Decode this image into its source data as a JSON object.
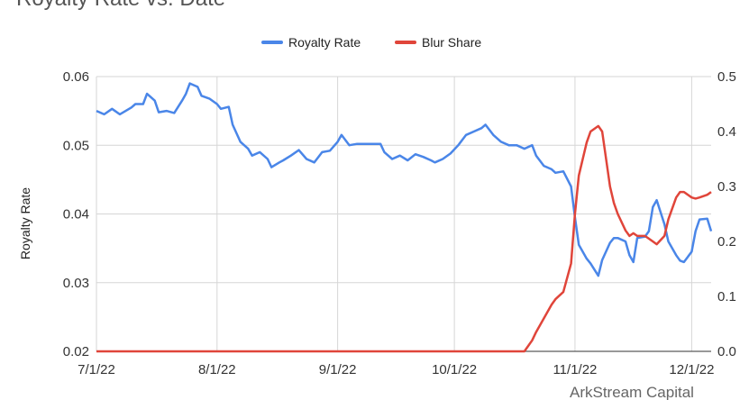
{
  "chart_data": {
    "type": "line",
    "title": "Royalty Rate vs. Date",
    "y_label": "Royalty Rate",
    "watermark": "ArkStream Capital",
    "x": [
      "7/1/22",
      "7/3/22",
      "7/5/22",
      "7/7/22",
      "7/10/22",
      "7/11/22",
      "7/13/22",
      "7/14/22",
      "7/16/22",
      "7/17/22",
      "7/19/22",
      "7/21/22",
      "7/23/22",
      "7/24/22",
      "7/25/22",
      "7/27/22",
      "7/28/22",
      "7/30/22",
      "8/1/22",
      "8/2/22",
      "8/4/22",
      "8/5/22",
      "8/7/22",
      "8/9/22",
      "8/10/22",
      "8/12/22",
      "8/14/22",
      "8/15/22",
      "8/17/22",
      "8/18/22",
      "8/20/22",
      "8/22/22",
      "8/24/22",
      "8/26/22",
      "8/28/22",
      "8/30/22",
      "9/1/22",
      "9/2/22",
      "9/4/22",
      "9/6/22",
      "9/8/22",
      "9/10/22",
      "9/12/22",
      "9/13/22",
      "9/15/22",
      "9/17/22",
      "9/19/22",
      "9/21/22",
      "9/23/22",
      "9/25/22",
      "9/26/22",
      "9/28/22",
      "9/30/22",
      "10/2/22",
      "10/4/22",
      "10/6/22",
      "10/8/22",
      "10/9/22",
      "10/11/22",
      "10/13/22",
      "10/15/22",
      "10/17/22",
      "10/19/22",
      "10/21/22",
      "10/22/22",
      "10/24/22",
      "10/26/22",
      "10/27/22",
      "10/29/22",
      "10/31/22",
      "11/1/22",
      "11/2/22",
      "11/4/22",
      "11/5/22",
      "11/7/22",
      "11/8/22",
      "11/10/22",
      "11/11/22",
      "11/12/22",
      "11/14/22",
      "11/15/22",
      "11/16/22",
      "11/17/22",
      "11/19/22",
      "11/20/22",
      "11/21/22",
      "11/22/22",
      "11/24/22",
      "11/25/22",
      "11/27/22",
      "11/28/22",
      "11/29/22",
      "12/1/22",
      "12/2/22",
      "12/3/22",
      "12/5/22",
      "12/6/22"
    ],
    "series": [
      {
        "name": "Royalty Rate",
        "color": "#4a86e8",
        "values": [
          0.055,
          0.0545,
          0.0553,
          0.0545,
          0.0555,
          0.056,
          0.056,
          0.0575,
          0.0565,
          0.0548,
          0.055,
          0.0547,
          0.0565,
          0.0575,
          0.059,
          0.0585,
          0.0572,
          0.0568,
          0.056,
          0.0553,
          0.0556,
          0.053,
          0.0505,
          0.0495,
          0.0485,
          0.049,
          0.048,
          0.0468,
          0.0475,
          0.0478,
          0.0485,
          0.0493,
          0.048,
          0.0475,
          0.049,
          0.0492,
          0.0505,
          0.0515,
          0.05,
          0.0502,
          0.0502,
          0.0502,
          0.0502,
          0.049,
          0.048,
          0.0485,
          0.0478,
          0.0487,
          0.0483,
          0.0478,
          0.0475,
          0.048,
          0.0488,
          0.05,
          0.0515,
          0.052,
          0.0525,
          0.053,
          0.0515,
          0.0505,
          0.05,
          0.05,
          0.0495,
          0.05,
          0.0485,
          0.047,
          0.0465,
          0.046,
          0.0462,
          0.044,
          0.0395,
          0.0355,
          0.0335,
          0.0328,
          0.031,
          0.0333,
          0.0358,
          0.0365,
          0.0365,
          0.036,
          0.034,
          0.033,
          0.0365,
          0.0367,
          0.0375,
          0.041,
          0.042,
          0.0385,
          0.036,
          0.034,
          0.0332,
          0.033,
          0.0345,
          0.0375,
          0.0392,
          0.0393,
          0.0375
        ]
      },
      {
        "name": "Blur Share",
        "color": "#e0453a",
        "axis": "y2",
        "values": [
          0,
          0,
          0,
          0,
          0,
          0,
          0,
          0,
          0,
          0,
          0,
          0,
          0,
          0,
          0,
          0,
          0,
          0,
          0,
          0,
          0,
          0,
          0,
          0,
          0,
          0,
          0,
          0,
          0,
          0,
          0,
          0,
          0,
          0,
          0,
          0,
          0,
          0,
          0,
          0,
          0,
          0,
          0,
          0,
          0,
          0,
          0,
          0,
          0,
          0,
          0,
          0,
          0,
          0,
          0,
          0,
          0,
          0,
          0,
          0,
          0,
          0,
          0,
          0.02,
          0.035,
          0.06,
          0.085,
          0.095,
          0.108,
          0.16,
          0.25,
          0.32,
          0.38,
          0.4,
          0.41,
          0.4,
          0.3,
          0.27,
          0.25,
          0.22,
          0.21,
          0.215,
          0.21,
          0.21,
          0.205,
          0.2,
          0.195,
          0.21,
          0.24,
          0.28,
          0.29,
          0.29,
          0.28,
          0.278,
          0.28,
          0.285,
          0.29
        ]
      }
    ],
    "xlim": [
      "7/1/22",
      "12/6/22"
    ],
    "xticks": [
      "7/1/22",
      "8/1/22",
      "9/1/22",
      "10/1/22",
      "11/1/22",
      "12/1/22"
    ],
    "ylim": [
      0.02,
      0.06
    ],
    "yticks": [
      0.02,
      0.03,
      0.04,
      0.05,
      0.06
    ],
    "y2lim": [
      0,
      0.5
    ],
    "y2ticks": [
      {
        "value": 0,
        "label": "0.0"
      },
      0.1,
      0.2,
      0.3,
      0.4,
      0.5
    ],
    "grid": true,
    "legend": "top"
  }
}
